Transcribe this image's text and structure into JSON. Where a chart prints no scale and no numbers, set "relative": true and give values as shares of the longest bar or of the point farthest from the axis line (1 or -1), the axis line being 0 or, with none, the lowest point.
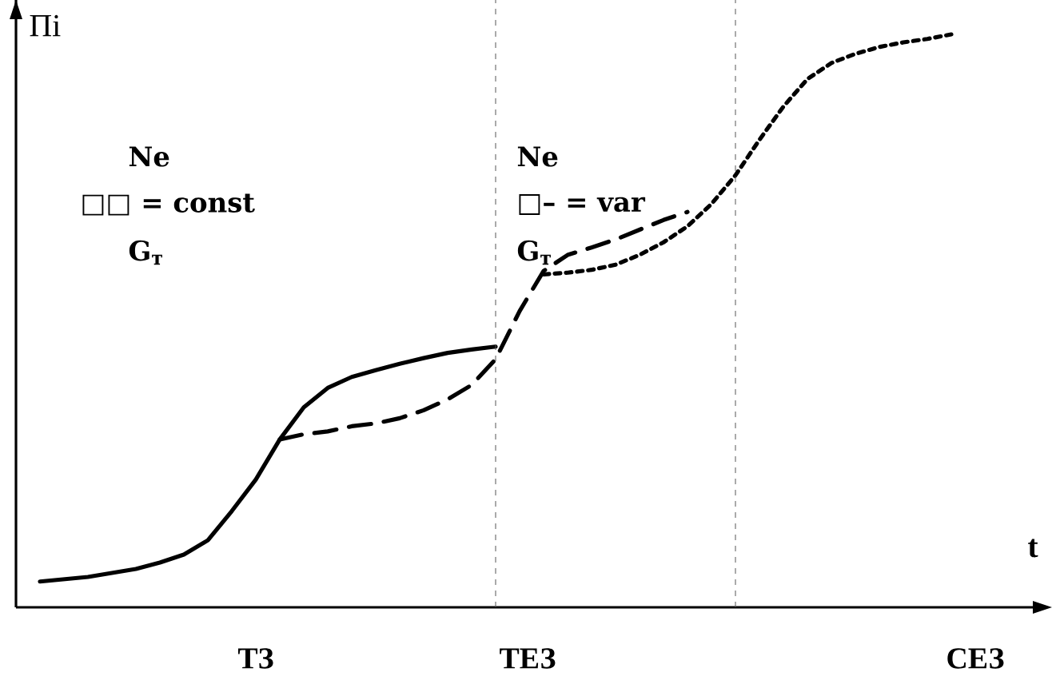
{
  "chart_data": {
    "type": "line",
    "relative": true,
    "xlabel": "t",
    "ylabel": "Пі",
    "categories": [
      null,
      null,
      null,
      null,
      null,
      null,
      null,
      null,
      null,
      null,
      null,
      null,
      null,
      null,
      null,
      null,
      null,
      null,
      null,
      null,
      null,
      null,
      null,
      null,
      null,
      null,
      null,
      null,
      null,
      null,
      null,
      null,
      null,
      null,
      null,
      null,
      null,
      null,
      null,
      null,
      null,
      null
    ],
    "series": [
      {
        "color": "#000000",
        "line_style": "solid",
        "values": [
          null,
          0.045,
          0.049,
          0.053,
          0.06,
          0.067,
          0.078,
          0.092,
          0.117,
          0.168,
          0.223,
          0.293,
          0.349,
          0.383,
          0.402,
          0.414,
          0.425,
          0.435,
          0.444,
          0.45,
          0.455,
          null,
          null,
          null,
          null,
          null,
          null,
          null,
          null,
          null,
          null,
          null,
          null,
          null,
          null,
          null,
          null,
          null,
          null,
          null,
          null,
          null
        ]
      },
      {
        "color": "#000000",
        "line_style": "dashed",
        "values": [
          null,
          null,
          null,
          null,
          null,
          null,
          null,
          null,
          null,
          null,
          null,
          0.293,
          0.302,
          0.307,
          0.316,
          0.321,
          0.33,
          0.344,
          0.363,
          0.388,
          0.433,
          0.517,
          0.587,
          0.615,
          0.628,
          0.642,
          0.659,
          0.676,
          0.69,
          null,
          null,
          null,
          null,
          null,
          null,
          null,
          null,
          null,
          null,
          null,
          null,
          null
        ]
      },
      {
        "color": "#000000",
        "line_style": "dotted",
        "values": [
          null,
          null,
          null,
          null,
          null,
          null,
          null,
          null,
          null,
          null,
          null,
          null,
          null,
          null,
          null,
          null,
          null,
          null,
          null,
          null,
          null,
          null,
          0.581,
          0.584,
          0.589,
          0.598,
          0.615,
          0.637,
          0.665,
          0.704,
          0.754,
          0.816,
          0.874,
          0.922,
          0.95,
          0.966,
          0.978,
          0.986,
          0.992,
          1.0,
          null,
          null
        ]
      }
    ],
    "annotations": [
      "Ne",
      "□□ = const",
      "G$_{т}$",
      "Ne",
      "□– = var",
      "G$_{т}$",
      "ТЗ",
      "ТЕЗ",
      "СЕЗ"
    ]
  }
}
